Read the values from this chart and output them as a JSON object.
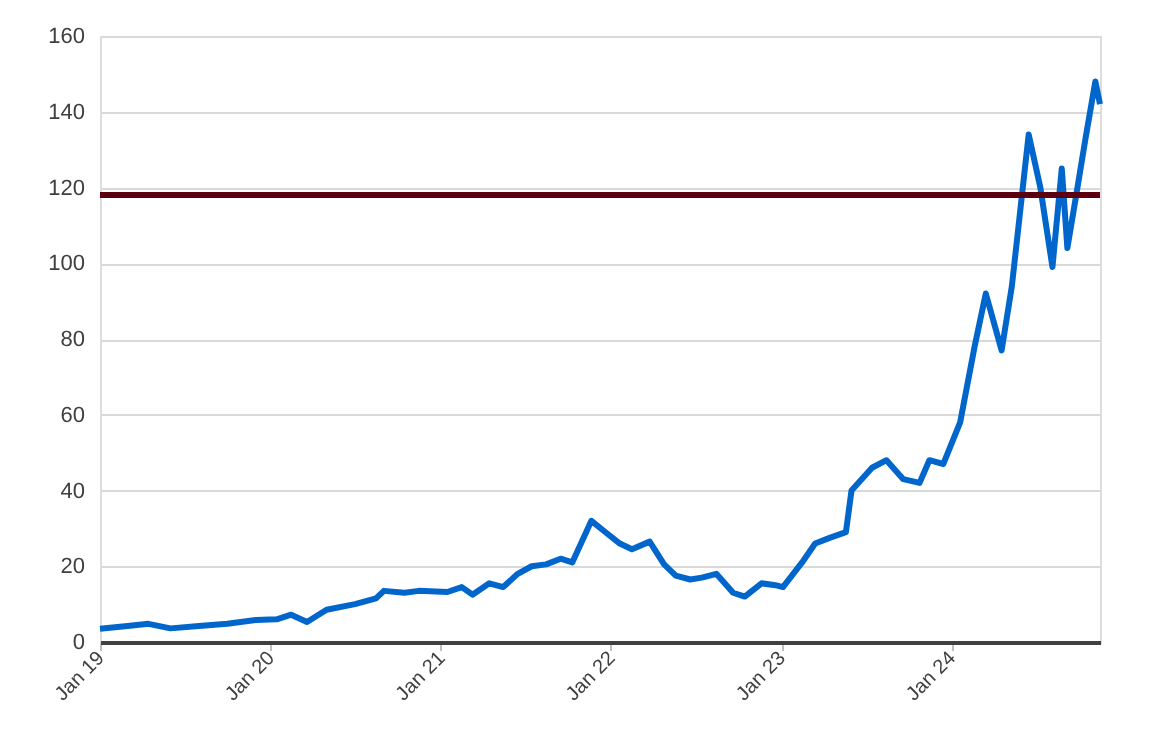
{
  "chart_data": {
    "type": "line",
    "x": [
      "2019-01-01",
      "2019-03-01",
      "2019-04-15",
      "2019-06-01",
      "2019-08-01",
      "2019-10-01",
      "2019-12-01",
      "2020-01-15",
      "2020-02-15",
      "2020-03-20",
      "2020-05-01",
      "2020-07-01",
      "2020-08-15",
      "2020-09-01",
      "2020-10-15",
      "2020-11-15",
      "2021-01-15",
      "2021-02-15",
      "2021-03-10",
      "2021-04-15",
      "2021-05-15",
      "2021-06-15",
      "2021-07-15",
      "2021-08-15",
      "2021-09-15",
      "2021-10-10",
      "2021-11-20",
      "2021-12-15",
      "2022-01-20",
      "2022-02-15",
      "2022-03-25",
      "2022-04-25",
      "2022-05-20",
      "2022-06-20",
      "2022-07-15",
      "2022-08-15",
      "2022-09-20",
      "2022-10-15",
      "2022-11-20",
      "2022-12-20",
      "2023-01-05",
      "2023-02-15",
      "2023-03-15",
      "2023-04-15",
      "2023-05-20",
      "2023-06-01",
      "2023-07-15",
      "2023-08-15",
      "2023-09-20",
      "2023-10-25",
      "2023-11-15",
      "2023-12-15",
      "2024-01-20",
      "2024-02-20",
      "2024-03-15",
      "2024-04-18",
      "2024-05-10",
      "2024-06-15",
      "2024-07-10",
      "2024-08-05",
      "2024-08-25",
      "2024-09-06",
      "2024-09-25",
      "2024-10-15",
      "2024-11-05",
      "2024-11-15"
    ],
    "series": [
      {
        "color": "#0066cc",
        "values": [
          3.5,
          4.2,
          4.8,
          3.6,
          4.2,
          4.8,
          5.8,
          6.0,
          7.2,
          5.3,
          8.5,
          10,
          11.5,
          13.5,
          13,
          13.5,
          13.2,
          14.5,
          12.5,
          15.5,
          14.5,
          18,
          20,
          20.5,
          22,
          21,
          32,
          29.5,
          26,
          24.5,
          26.5,
          20.5,
          17.5,
          16.5,
          17,
          18,
          13,
          12,
          15.5,
          15,
          14.5,
          21,
          26,
          27.5,
          29,
          40,
          46,
          48,
          43,
          42,
          48,
          47,
          58,
          78,
          92,
          77,
          94,
          134,
          120,
          99,
          125,
          104,
          118,
          133,
          148,
          142
        ]
      }
    ],
    "xlim": [
      "2019-01-01",
      "2024-11-15"
    ],
    "xticks": [
      {
        "value": "2019-01-01",
        "label": "Jan 19"
      },
      {
        "value": "2020-01-01",
        "label": "Jan 20"
      },
      {
        "value": "2021-01-01",
        "label": "Jan 21"
      },
      {
        "value": "2022-01-01",
        "label": "Jan 22"
      },
      {
        "value": "2023-01-01",
        "label": "Jan 23"
      },
      {
        "value": "2024-01-01",
        "label": "Jan 24"
      }
    ],
    "ylim": [
      0,
      160
    ],
    "yticks": [
      0,
      20,
      40,
      60,
      80,
      100,
      120,
      140,
      160
    ],
    "ref_lines": [
      {
        "axis": "y",
        "value": 118,
        "color": "#5c0011"
      }
    ],
    "grid": "y",
    "marker": "none",
    "line_style": "solid"
  }
}
